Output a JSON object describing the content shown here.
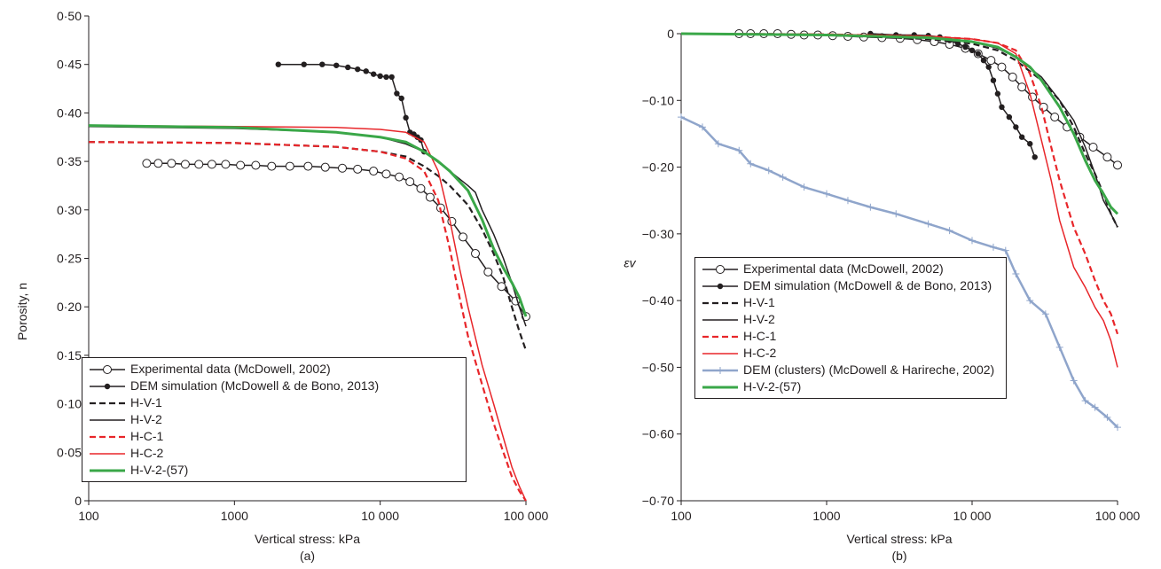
{
  "chart_data": [
    {
      "type": "line",
      "caption": "(a)",
      "xlabel": "Vertical stress: kPa",
      "ylabel": "Porosity, n",
      "xscale": "log",
      "xlim": [
        100,
        100000
      ],
      "xticks": [
        100,
        1000,
        {
          "value": 10000,
          "label": "10 000"
        },
        {
          "value": 100000,
          "label": "100 000"
        }
      ],
      "ylim": [
        0,
        0.5
      ],
      "yticks": [
        0,
        {
          "value": 0.05,
          "label": "0·05"
        },
        {
          "value": 0.1,
          "label": "0·10"
        },
        {
          "value": 0.15,
          "label": "0·15"
        },
        {
          "value": 0.2,
          "label": "0·20"
        },
        {
          "value": 0.25,
          "label": "0·25"
        },
        {
          "value": 0.3,
          "label": "0·30"
        },
        {
          "value": 0.35,
          "label": "0·35"
        },
        {
          "value": 0.4,
          "label": "0·40"
        },
        {
          "value": 0.45,
          "label": "0·45"
        },
        {
          "value": 0.5,
          "label": "0·50"
        }
      ],
      "legend": "lower left",
      "series": [
        {
          "name": "Experimental data (McDowell, 2002)",
          "color": "#231f20",
          "marker": "circle-open",
          "x": [
            250,
            300,
            370,
            460,
            570,
            700,
            870,
            1100,
            1400,
            1800,
            2400,
            3200,
            4200,
            5500,
            7000,
            9000,
            11000,
            13500,
            16000,
            19000,
            22000,
            26000,
            31000,
            37000,
            45000,
            55000,
            68000,
            85000,
            100000
          ],
          "values": [
            0.348,
            0.348,
            0.348,
            0.347,
            0.347,
            0.347,
            0.347,
            0.346,
            0.346,
            0.345,
            0.345,
            0.345,
            0.344,
            0.343,
            0.342,
            0.34,
            0.337,
            0.334,
            0.329,
            0.322,
            0.313,
            0.302,
            0.288,
            0.272,
            0.255,
            0.236,
            0.221,
            0.206,
            0.19
          ]
        },
        {
          "name": "DEM simulation (McDowell & de Bono, 2013)",
          "color": "#231f20",
          "marker": "dot",
          "x": [
            2000,
            3000,
            4000,
            5000,
            6000,
            7000,
            8000,
            9000,
            10000,
            11000,
            12000,
            13000,
            14000,
            15000,
            16000,
            17000,
            18000,
            19000,
            20000
          ],
          "values": [
            0.45,
            0.45,
            0.45,
            0.449,
            0.447,
            0.445,
            0.443,
            0.44,
            0.438,
            0.437,
            0.437,
            0.42,
            0.415,
            0.395,
            0.38,
            0.378,
            0.375,
            0.372,
            0.36
          ]
        },
        {
          "name": "H-V-1",
          "color": "#231f20",
          "dash": true,
          "x": [
            100,
            1000,
            5000,
            10000,
            15000,
            20000,
            25000,
            30000,
            40000,
            50000,
            60000,
            70000,
            80000,
            90000,
            100000
          ],
          "values": [
            0.37,
            0.369,
            0.365,
            0.36,
            0.355,
            0.345,
            0.335,
            0.325,
            0.305,
            0.28,
            0.255,
            0.23,
            0.2,
            0.175,
            0.155
          ]
        },
        {
          "name": "H-V-2",
          "color": "#231f20",
          "x": [
            100,
            1000,
            5000,
            10000,
            15000,
            20000,
            30000,
            40000,
            45000,
            50000,
            60000,
            70000,
            80000,
            90000,
            100000
          ],
          "values": [
            0.386,
            0.384,
            0.38,
            0.375,
            0.368,
            0.36,
            0.34,
            0.325,
            0.318,
            0.3,
            0.275,
            0.25,
            0.225,
            0.2,
            0.18
          ]
        },
        {
          "name": "H-C-1",
          "color": "#e8262a",
          "dash": true,
          "x": [
            100,
            1000,
            5000,
            10000,
            15000,
            20000,
            25000,
            30000,
            35000,
            40000,
            50000,
            60000,
            70000,
            80000,
            90000,
            100000
          ],
          "values": [
            0.37,
            0.369,
            0.365,
            0.36,
            0.353,
            0.34,
            0.31,
            0.26,
            0.21,
            0.17,
            0.12,
            0.08,
            0.05,
            0.025,
            0.01,
            0
          ]
        },
        {
          "name": "H-C-2",
          "color": "#e8262a",
          "x": [
            100,
            1000,
            5000,
            10000,
            15000,
            20000,
            25000,
            30000,
            35000,
            40000,
            50000,
            60000,
            70000,
            80000,
            90000,
            100000
          ],
          "values": [
            0.387,
            0.386,
            0.385,
            0.383,
            0.38,
            0.37,
            0.34,
            0.29,
            0.24,
            0.2,
            0.14,
            0.1,
            0.065,
            0.035,
            0.015,
            0
          ]
        },
        {
          "name": "H-V-2-(57)",
          "color": "#3aa748",
          "width": 3,
          "x": [
            100,
            1000,
            5000,
            10000,
            15000,
            20000,
            25000,
            30000,
            40000,
            50000,
            60000,
            70000,
            80000,
            90000,
            100000
          ],
          "values": [
            0.387,
            0.385,
            0.38,
            0.375,
            0.37,
            0.36,
            0.35,
            0.34,
            0.32,
            0.29,
            0.26,
            0.24,
            0.225,
            0.21,
            0.19
          ]
        }
      ]
    },
    {
      "type": "line",
      "caption": "(b)",
      "xlabel": "Vertical stress: kPa",
      "ylabel": "εv",
      "xscale": "log",
      "xlim": [
        100,
        100000
      ],
      "xticks": [
        100,
        1000,
        {
          "value": 10000,
          "label": "10 000"
        },
        {
          "value": 100000,
          "label": "100 000"
        }
      ],
      "ylim": [
        -0.7,
        0
      ],
      "yticks": [
        {
          "value": -0.7,
          "label": "−0·70"
        },
        {
          "value": -0.6,
          "label": "−0·60"
        },
        {
          "value": -0.5,
          "label": "−0·50"
        },
        {
          "value": -0.4,
          "label": "−0·40"
        },
        {
          "value": -0.3,
          "label": "−0·30"
        },
        {
          "value": -0.2,
          "label": "−0·20"
        },
        {
          "value": -0.1,
          "label": "−0·10"
        },
        0
      ],
      "legend": "lower left",
      "series": [
        {
          "name": "Experimental data (McDowell, 2002)",
          "color": "#231f20",
          "marker": "circle-open",
          "x": [
            250,
            300,
            370,
            460,
            570,
            700,
            870,
            1100,
            1400,
            1800,
            2400,
            3200,
            4200,
            5500,
            7000,
            9000,
            11000,
            13500,
            16000,
            19000,
            22000,
            26000,
            31000,
            37000,
            45000,
            55000,
            68000,
            85000,
            100000
          ],
          "values": [
            0,
            0,
            0,
            0,
            -0.001,
            -0.002,
            -0.002,
            -0.003,
            -0.004,
            -0.005,
            -0.006,
            -0.007,
            -0.009,
            -0.012,
            -0.016,
            -0.022,
            -0.03,
            -0.04,
            -0.05,
            -0.065,
            -0.08,
            -0.095,
            -0.11,
            -0.125,
            -0.14,
            -0.155,
            -0.17,
            -0.185,
            -0.197
          ]
        },
        {
          "name": "DEM simulation (McDowell & de Bono, 2013)",
          "color": "#231f20",
          "marker": "dot",
          "x": [
            2000,
            3000,
            4000,
            5000,
            6000,
            7000,
            8000,
            9000,
            10000,
            11000,
            12000,
            13000,
            14000,
            15000,
            16000,
            18000,
            20000,
            22000,
            25000,
            27000
          ],
          "values": [
            0,
            -0.002,
            -0.002,
            -0.003,
            -0.005,
            -0.01,
            -0.015,
            -0.02,
            -0.025,
            -0.03,
            -0.04,
            -0.05,
            -0.07,
            -0.09,
            -0.11,
            -0.125,
            -0.14,
            -0.155,
            -0.165,
            -0.185
          ]
        },
        {
          "name": "H-V-1",
          "color": "#231f20",
          "dash": true,
          "x": [
            100,
            1000,
            5000,
            10000,
            15000,
            20000,
            30000,
            40000,
            50000,
            60000,
            70000,
            80000,
            90000,
            100000
          ],
          "values": [
            0,
            -0.002,
            -0.008,
            -0.015,
            -0.025,
            -0.04,
            -0.07,
            -0.1,
            -0.14,
            -0.18,
            -0.21,
            -0.24,
            -0.27,
            -0.29
          ]
        },
        {
          "name": "H-V-2",
          "color": "#231f20",
          "x": [
            100,
            1000,
            5000,
            10000,
            15000,
            20000,
            30000,
            40000,
            50000,
            60000,
            70000,
            80000,
            90000,
            100000
          ],
          "values": [
            0,
            -0.001,
            -0.005,
            -0.012,
            -0.022,
            -0.035,
            -0.065,
            -0.1,
            -0.13,
            -0.17,
            -0.21,
            -0.25,
            -0.27,
            -0.29
          ]
        },
        {
          "name": "H-C-1",
          "color": "#e8262a",
          "dash": true,
          "x": [
            100,
            1000,
            5000,
            10000,
            15000,
            20000,
            25000,
            30000,
            35000,
            40000,
            50000,
            60000,
            70000,
            80000,
            90000,
            100000
          ],
          "values": [
            0,
            -0.001,
            -0.004,
            -0.008,
            -0.014,
            -0.025,
            -0.06,
            -0.11,
            -0.17,
            -0.22,
            -0.29,
            -0.33,
            -0.37,
            -0.4,
            -0.42,
            -0.45
          ]
        },
        {
          "name": "H-C-2",
          "color": "#e8262a",
          "x": [
            100,
            1000,
            5000,
            10000,
            15000,
            20000,
            25000,
            30000,
            35000,
            40000,
            50000,
            60000,
            70000,
            80000,
            90000,
            100000
          ],
          "values": [
            0,
            -0.001,
            -0.004,
            -0.008,
            -0.014,
            -0.03,
            -0.09,
            -0.16,
            -0.22,
            -0.28,
            -0.35,
            -0.38,
            -0.41,
            -0.43,
            -0.46,
            -0.5
          ]
        },
        {
          "name": "DEM (clusters) (McDowell & Harireche, 2002)",
          "color": "#8fa5cb",
          "marker": "plus",
          "width": 2.5,
          "x": [
            100,
            140,
            180,
            250,
            300,
            400,
            500,
            700,
            1000,
            1400,
            2000,
            3000,
            5000,
            7000,
            10000,
            14000,
            17000,
            20000,
            25000,
            32000,
            40000,
            50000,
            60000,
            70000,
            85000,
            100000
          ],
          "values": [
            -0.125,
            -0.14,
            -0.165,
            -0.175,
            -0.195,
            -0.205,
            -0.215,
            -0.23,
            -0.24,
            -0.25,
            -0.26,
            -0.27,
            -0.285,
            -0.295,
            -0.31,
            -0.32,
            -0.325,
            -0.36,
            -0.4,
            -0.42,
            -0.47,
            -0.52,
            -0.55,
            -0.56,
            -0.575,
            -0.59
          ]
        },
        {
          "name": "H-V-2-(57)",
          "color": "#3aa748",
          "width": 3,
          "x": [
            100,
            1000,
            5000,
            10000,
            15000,
            20000,
            25000,
            30000,
            40000,
            50000,
            60000,
            70000,
            80000,
            90000,
            100000
          ],
          "values": [
            0,
            -0.002,
            -0.006,
            -0.012,
            -0.02,
            -0.035,
            -0.05,
            -0.07,
            -0.11,
            -0.15,
            -0.19,
            -0.22,
            -0.24,
            -0.26,
            -0.27
          ]
        }
      ]
    }
  ]
}
